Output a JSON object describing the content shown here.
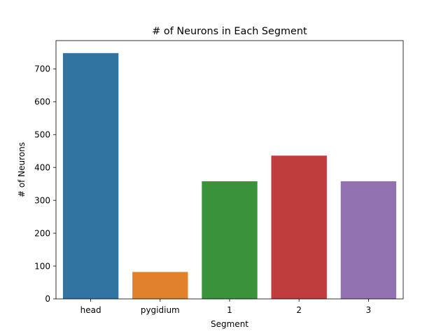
{
  "chart_data": {
    "type": "bar",
    "title": "# of Neurons in Each Segment",
    "xlabel": "Segment",
    "ylabel": "# of Neurons",
    "categories": [
      "head",
      "pygidium",
      "1",
      "2",
      "3"
    ],
    "values": [
      748,
      82,
      358,
      436,
      358
    ],
    "colors": [
      "#3274a1",
      "#e1812c",
      "#3a923a",
      "#c03d3e",
      "#9372b2"
    ],
    "ylim": [
      0,
      786
    ],
    "yticks": [
      0,
      100,
      200,
      300,
      400,
      500,
      600,
      700
    ],
    "grid": false,
    "legend": "none"
  }
}
